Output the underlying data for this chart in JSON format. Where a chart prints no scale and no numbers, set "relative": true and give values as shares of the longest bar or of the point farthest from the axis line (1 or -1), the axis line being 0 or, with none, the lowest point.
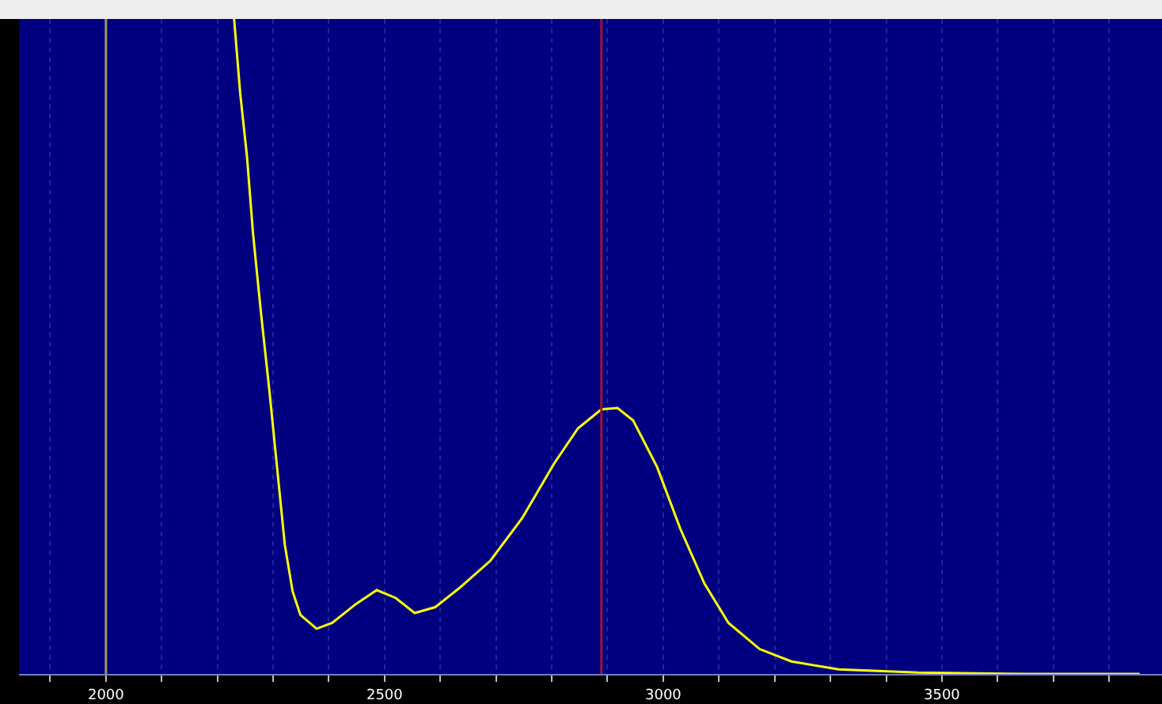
{
  "chart_data": {
    "type": "line",
    "relative": true,
    "x": [
      2230,
      2241,
      2253,
      2264,
      2278,
      2293,
      2307,
      2321,
      2335,
      2349,
      2378,
      2406,
      2449,
      2486,
      2520,
      2554,
      2591,
      2634,
      2690,
      2747,
      2804,
      2847,
      2889,
      2918,
      2946,
      2989,
      3031,
      3074,
      3117,
      3173,
      3230,
      3315,
      3457,
      3656,
      3855
    ],
    "series": [
      {
        "color": "#ffff00",
        "values": [
          1.0,
          0.886,
          0.791,
          0.672,
          0.553,
          0.435,
          0.316,
          0.197,
          0.126,
          0.09,
          0.069,
          0.078,
          0.107,
          0.128,
          0.116,
          0.093,
          0.102,
          0.131,
          0.173,
          0.238,
          0.321,
          0.375,
          0.404,
          0.406,
          0.387,
          0.316,
          0.221,
          0.138,
          0.078,
          0.038,
          0.019,
          0.007,
          0.002,
          0,
          0
        ]
      }
    ],
    "xlim": [
      1844,
      3895
    ],
    "xticks": [
      {
        "value": 1900,
        "label": null
      },
      2000,
      {
        "value": 2100,
        "label": null
      },
      {
        "value": 2200,
        "label": null
      },
      {
        "value": 2300,
        "label": null
      },
      {
        "value": 2400,
        "label": null
      },
      2500,
      {
        "value": 2600,
        "label": null
      },
      {
        "value": 2700,
        "label": null
      },
      {
        "value": 2800,
        "label": null
      },
      {
        "value": 2900,
        "label": null
      },
      3000,
      {
        "value": 3100,
        "label": null
      },
      {
        "value": 3200,
        "label": null
      },
      {
        "value": 3300,
        "label": null
      },
      {
        "value": 3400,
        "label": null
      },
      3500,
      {
        "value": 3600,
        "label": null
      },
      {
        "value": 3700,
        "label": null
      },
      {
        "value": 3800,
        "label": null
      }
    ],
    "ref_lines": [
      {
        "axis": "x",
        "value": 2000,
        "color": "#9a9a5a"
      },
      {
        "axis": "x",
        "value": 2889,
        "color": "#a01030"
      }
    ],
    "grid": "x",
    "marker": "none",
    "line_style": "solid"
  }
}
